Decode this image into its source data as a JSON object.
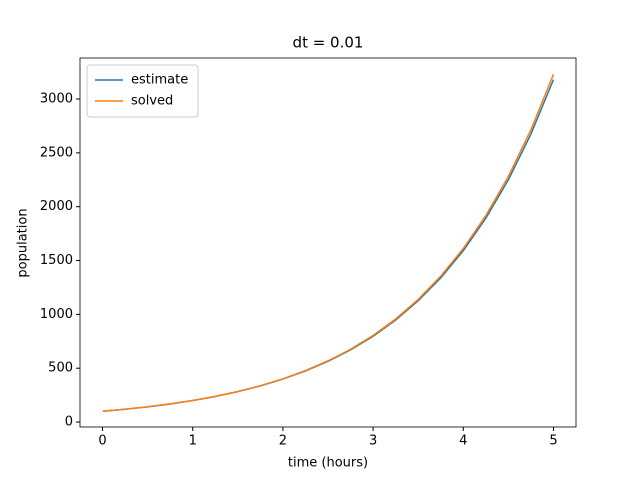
{
  "chart_data": {
    "type": "line",
    "title": "dt = 0.01",
    "x_label": "time (hours)",
    "y_label": "population",
    "x": [
      0,
      0.25,
      0.5,
      0.75,
      1,
      1.25,
      1.5,
      1.75,
      2,
      2.25,
      2.5,
      2.75,
      3,
      3.25,
      3.5,
      3.75,
      4,
      4.25,
      4.5,
      4.75,
      5
    ],
    "series": [
      {
        "name": "estimate",
        "color": "#1f77b4",
        "values": [
          100,
          118.9,
          141.3,
          168.0,
          199.8,
          237.5,
          282.3,
          335.6,
          399.0,
          474.4,
          564.0,
          670.5,
          797.0,
          947.5,
          1126.4,
          1339.1,
          1592.0,
          1892.6,
          2250.0,
          2674.9,
          3180.0
        ]
      },
      {
        "name": "solved",
        "color": "#ff7f0e",
        "values": [
          100,
          119.0,
          141.6,
          168.4,
          200.4,
          238.4,
          283.6,
          337.5,
          401.5,
          477.7,
          568.3,
          676.1,
          804.4,
          957.1,
          1138.6,
          1354.7,
          1611.9,
          1917.8,
          2281.6,
          2714.6,
          3229.7
        ]
      }
    ],
    "xlim": [
      -0.25,
      5.25
    ],
    "xticks": [
      0,
      1,
      2,
      3,
      4,
      5
    ],
    "ylim": [
      -46,
      3381
    ],
    "yticks": [
      0,
      500,
      1000,
      1500,
      2000,
      2500,
      3000
    ],
    "legend": "upper left",
    "grid": false
  }
}
